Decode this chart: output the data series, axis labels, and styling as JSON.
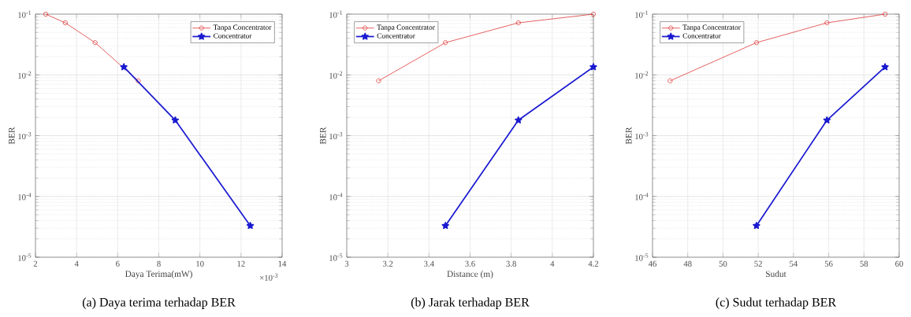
{
  "chart_data": [
    {
      "type": "line",
      "title": "(a) Daya terima terhadap BER",
      "xlabel": "Daya Terima(mW)",
      "ylabel": "BER",
      "log": "y",
      "grid": true,
      "legend": "top right",
      "xlim": [
        2,
        14
      ],
      "xticks": [
        2,
        4,
        6,
        8,
        10,
        12,
        14
      ],
      "ylim": [
        1e-05,
        0.1
      ],
      "yticks": [
        {
          "value": 1e-05,
          "label": "10$^{-5}$"
        },
        {
          "value": 0.0001,
          "label": "10$^{-4}$"
        },
        {
          "value": 0.001,
          "label": "10$^{-3}$"
        },
        {
          "value": 0.01,
          "label": "10$^{-2}$"
        },
        {
          "value": 0.1,
          "label": "10$^{-1}$"
        }
      ],
      "annotations": [
        "×10$^{-3}$"
      ],
      "series": [
        {
          "name": "Tanpa Concentrator",
          "color": "#e03a3a",
          "marker": "circle",
          "x": [
            2.5,
            3.45,
            4.9,
            7.0
          ],
          "values": [
            0.1,
            0.072,
            0.034,
            0.008
          ]
        },
        {
          "name": "Concentrator",
          "color": "#1a1ad0",
          "marker": "star",
          "x": [
            6.3,
            8.8,
            12.45
          ],
          "values": [
            0.0135,
            0.0018,
            3.3e-05
          ]
        }
      ]
    },
    {
      "type": "line",
      "title": "(b) Jarak terhadap BER",
      "xlabel": "Distance (m)",
      "ylabel": "BER",
      "log": "y",
      "grid": true,
      "legend": "top left",
      "xlim": [
        3,
        4.2
      ],
      "xticks": [
        3,
        3.2,
        3.4,
        3.6,
        3.8,
        4,
        4.2
      ],
      "ylim": [
        1e-05,
        0.1
      ],
      "yticks": [
        {
          "value": 1e-05,
          "label": "10$^{-5}$"
        },
        {
          "value": 0.0001,
          "label": "10$^{-4}$"
        },
        {
          "value": 0.001,
          "label": "10$^{-3}$"
        },
        {
          "value": 0.01,
          "label": "10$^{-2}$"
        },
        {
          "value": 0.1,
          "label": "10$^{-1}$"
        }
      ],
      "series": [
        {
          "name": "Tanpa Concentrator",
          "color": "#e03a3a",
          "marker": "circle",
          "x": [
            3.155,
            3.48,
            3.835,
            4.2
          ],
          "values": [
            0.008,
            0.034,
            0.072,
            0.1
          ]
        },
        {
          "name": "Concentrator",
          "color": "#1a1ad0",
          "marker": "star",
          "x": [
            3.48,
            3.835,
            4.2
          ],
          "values": [
            3.3e-05,
            0.0018,
            0.0135
          ]
        }
      ]
    },
    {
      "type": "line",
      "title": "(c) Sudut terhadap BER",
      "xlabel": "Sudut",
      "ylabel": "BER",
      "log": "y",
      "grid": true,
      "legend": "top left",
      "xlim": [
        46,
        60
      ],
      "xticks": [
        46,
        48,
        50,
        52,
        54,
        56,
        58,
        60
      ],
      "ylim": [
        1e-05,
        0.1
      ],
      "yticks": [
        {
          "value": 1e-05,
          "label": "10$^{-5}$"
        },
        {
          "value": 0.0001,
          "label": "10$^{-4}$"
        },
        {
          "value": 0.001,
          "label": "10$^{-3}$"
        },
        {
          "value": 0.01,
          "label": "10$^{-2}$"
        },
        {
          "value": 0.1,
          "label": "10$^{-1}$"
        }
      ],
      "series": [
        {
          "name": "Tanpa Concentrator",
          "color": "#e03a3a",
          "marker": "circle",
          "x": [
            47,
            51.9,
            55.9,
            59.2
          ],
          "values": [
            0.008,
            0.034,
            0.072,
            0.1
          ]
        },
        {
          "name": "Concentrator",
          "color": "#1a1ad0",
          "marker": "star",
          "x": [
            51.9,
            55.9,
            59.2
          ],
          "values": [
            3.3e-05,
            0.0018,
            0.0135
          ]
        }
      ]
    }
  ]
}
